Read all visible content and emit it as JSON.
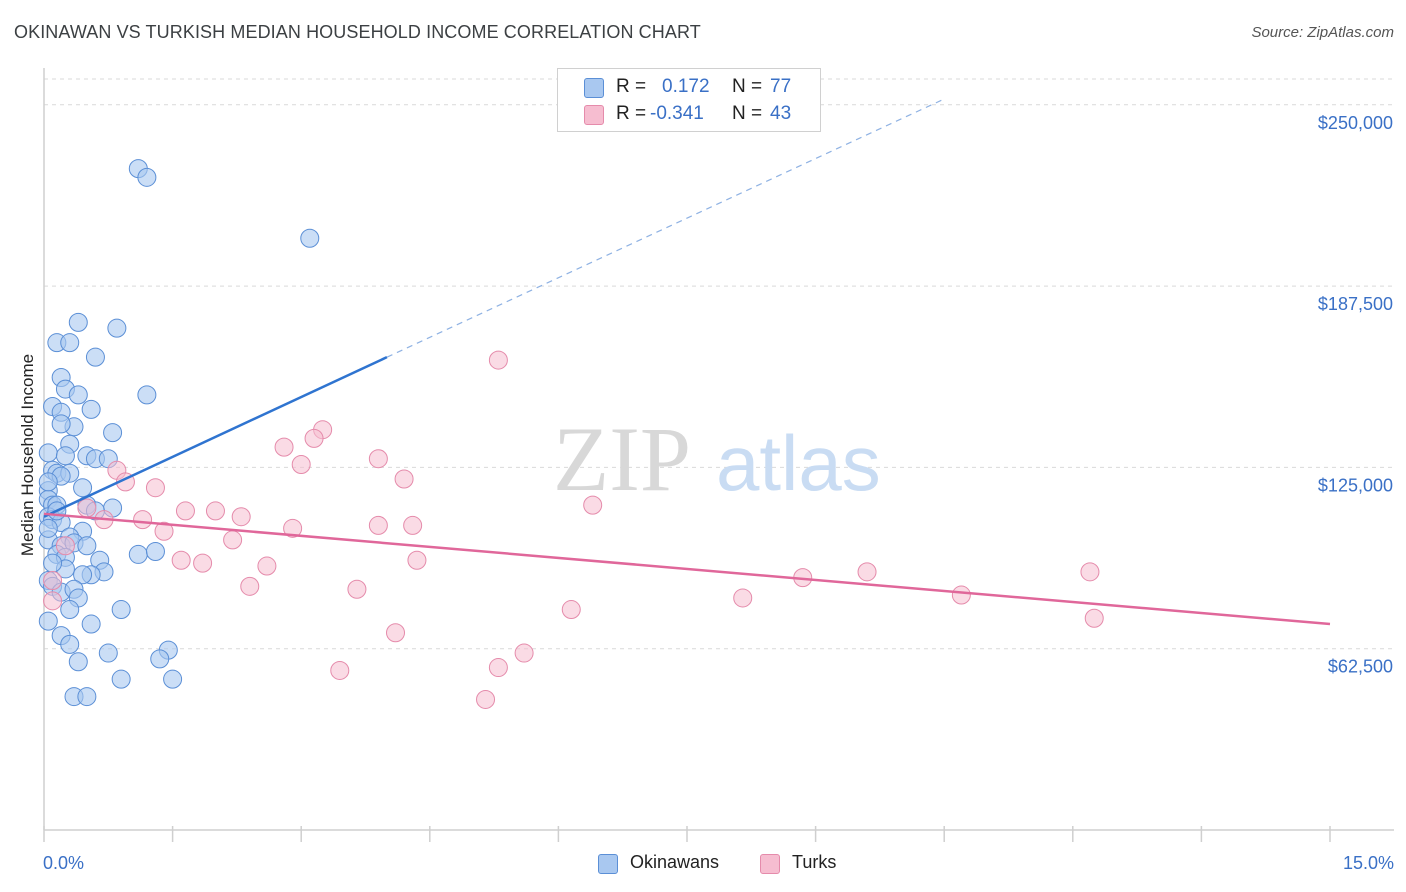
{
  "title": "OKINAWAN VS TURKISH MEDIAN HOUSEHOLD INCOME CORRELATION CHART",
  "source": "Source: ZipAtlas.com",
  "watermark": {
    "zip": "ZIP",
    "atlas": "atlas"
  },
  "colors": {
    "okinawan_fill": "#a9c8f0",
    "okinawan_stroke": "#5b8fd6",
    "okinawan_line": "#2f74d0",
    "turk_fill": "#f6bdd0",
    "turk_stroke": "#e58bab",
    "turk_line": "#e0679a",
    "tick_text": "#3a70c6",
    "grid": "#d9d9d9"
  },
  "legend": {
    "rows": [
      {
        "r_label": "R =",
        "r_value": "0.172",
        "n_label": "N =",
        "n_value": "77"
      },
      {
        "r_label": "R =",
        "r_value": "-0.341",
        "n_label": "N =",
        "n_value": "43"
      }
    ]
  },
  "bottom_legend": {
    "okinawans": "Okinawans",
    "turks": "Turks"
  },
  "chart_data": {
    "type": "scatter",
    "title": "OKINAWAN VS TURKISH MEDIAN HOUSEHOLD INCOME CORRELATION CHART",
    "xlabel": "",
    "ylabel": "Median Household Income",
    "xlim": [
      0,
      15
    ],
    "ylim": [
      0,
      262000
    ],
    "x_tick_labels": [
      "0.0%",
      "15.0%"
    ],
    "y_ticks": [
      62500,
      125000,
      187500,
      250000
    ],
    "y_tick_labels": [
      "$62,500",
      "$125,000",
      "$187,500",
      "$250,000"
    ],
    "grid": true,
    "series": [
      {
        "name": "Okinawans",
        "r": 0.172,
        "n": 77,
        "trend": {
          "x0": 0.0,
          "y0": 108000,
          "x1": 4.0,
          "y1": 163000,
          "dashed_to_x": 10.5,
          "dashed_to_y": 252000
        },
        "points": [
          [
            1.1,
            228000
          ],
          [
            1.2,
            225000
          ],
          [
            3.1,
            204000
          ],
          [
            0.4,
            175000
          ],
          [
            0.85,
            173000
          ],
          [
            0.15,
            168000
          ],
          [
            0.3,
            168000
          ],
          [
            0.6,
            163000
          ],
          [
            0.2,
            156000
          ],
          [
            0.25,
            152000
          ],
          [
            0.4,
            150000
          ],
          [
            1.2,
            150000
          ],
          [
            0.1,
            146000
          ],
          [
            0.2,
            144000
          ],
          [
            0.55,
            145000
          ],
          [
            0.35,
            139000
          ],
          [
            0.8,
            137000
          ],
          [
            0.3,
            133000
          ],
          [
            0.05,
            130000
          ],
          [
            0.25,
            129000
          ],
          [
            0.5,
            129000
          ],
          [
            0.6,
            128000
          ],
          [
            0.75,
            128000
          ],
          [
            0.1,
            124000
          ],
          [
            0.15,
            123000
          ],
          [
            0.3,
            123000
          ],
          [
            0.2,
            122000
          ],
          [
            0.05,
            117000
          ],
          [
            0.05,
            114000
          ],
          [
            0.1,
            112000
          ],
          [
            0.15,
            112000
          ],
          [
            0.5,
            112000
          ],
          [
            0.8,
            111000
          ],
          [
            0.05,
            108000
          ],
          [
            0.1,
            107000
          ],
          [
            0.2,
            106000
          ],
          [
            0.45,
            103000
          ],
          [
            0.3,
            101000
          ],
          [
            0.05,
            100000
          ],
          [
            0.2,
            98000
          ],
          [
            0.35,
            99000
          ],
          [
            0.5,
            98000
          ],
          [
            0.15,
            95000
          ],
          [
            0.25,
            94000
          ],
          [
            1.1,
            95000
          ],
          [
            1.3,
            96000
          ],
          [
            0.65,
            93000
          ],
          [
            0.7,
            89000
          ],
          [
            0.55,
            88000
          ],
          [
            0.45,
            88000
          ],
          [
            0.05,
            86000
          ],
          [
            0.1,
            84000
          ],
          [
            0.2,
            82000
          ],
          [
            0.35,
            83000
          ],
          [
            0.4,
            80000
          ],
          [
            0.9,
            76000
          ],
          [
            0.05,
            72000
          ],
          [
            0.55,
            71000
          ],
          [
            0.2,
            67000
          ],
          [
            0.3,
            64000
          ],
          [
            0.75,
            61000
          ],
          [
            1.45,
            62000
          ],
          [
            1.35,
            59000
          ],
          [
            0.4,
            58000
          ],
          [
            0.9,
            52000
          ],
          [
            1.5,
            52000
          ],
          [
            0.35,
            46000
          ],
          [
            0.5,
            46000
          ],
          [
            0.05,
            120000
          ],
          [
            0.15,
            110000
          ],
          [
            0.05,
            104000
          ],
          [
            0.25,
            90000
          ],
          [
            0.1,
            92000
          ],
          [
            0.3,
            76000
          ],
          [
            0.6,
            110000
          ],
          [
            0.2,
            140000
          ],
          [
            0.45,
            118000
          ]
        ]
      },
      {
        "name": "Turks",
        "r": -0.341,
        "n": 43,
        "trend": {
          "x0": 0.0,
          "y0": 109000,
          "x1": 15.0,
          "y1": 71000
        },
        "points": [
          [
            5.3,
            162000
          ],
          [
            3.25,
            138000
          ],
          [
            3.15,
            135000
          ],
          [
            2.8,
            132000
          ],
          [
            3.0,
            126000
          ],
          [
            3.9,
            128000
          ],
          [
            0.85,
            124000
          ],
          [
            4.2,
            121000
          ],
          [
            1.3,
            118000
          ],
          [
            0.95,
            120000
          ],
          [
            6.4,
            112000
          ],
          [
            0.5,
            111000
          ],
          [
            2.0,
            110000
          ],
          [
            1.65,
            110000
          ],
          [
            2.3,
            108000
          ],
          [
            1.15,
            107000
          ],
          [
            0.7,
            107000
          ],
          [
            3.9,
            105000
          ],
          [
            4.3,
            105000
          ],
          [
            2.9,
            104000
          ],
          [
            1.4,
            103000
          ],
          [
            2.2,
            100000
          ],
          [
            0.25,
            98000
          ],
          [
            4.35,
            93000
          ],
          [
            1.6,
            93000
          ],
          [
            1.85,
            92000
          ],
          [
            2.6,
            91000
          ],
          [
            9.6,
            89000
          ],
          [
            12.2,
            89000
          ],
          [
            8.85,
            87000
          ],
          [
            0.1,
            86000
          ],
          [
            2.4,
            84000
          ],
          [
            3.65,
            83000
          ],
          [
            10.7,
            81000
          ],
          [
            8.15,
            80000
          ],
          [
            0.1,
            79000
          ],
          [
            6.15,
            76000
          ],
          [
            12.25,
            73000
          ],
          [
            4.1,
            68000
          ],
          [
            5.6,
            61000
          ],
          [
            3.45,
            55000
          ],
          [
            5.3,
            56000
          ],
          [
            5.15,
            45000
          ]
        ]
      }
    ]
  }
}
